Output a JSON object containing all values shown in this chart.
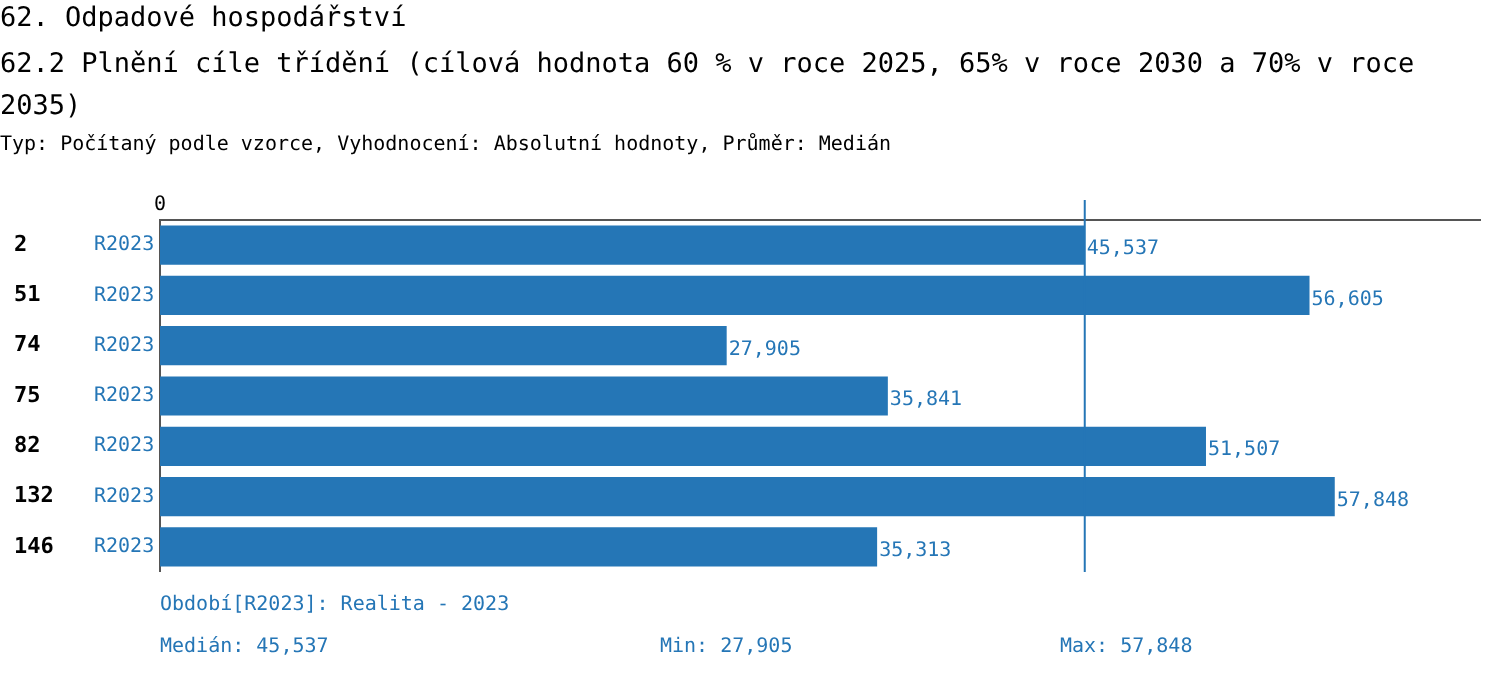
{
  "chart_data": {
    "type": "bar",
    "orientation": "horizontal",
    "title": "62. Odpadové hospodářství",
    "subtitle": "62.2 Plnění cíle třídění (cílová hodnota 60 % v roce 2025, 65% v roce 2030 a 70% v roce 2035)",
    "categories": [
      "2",
      "51",
      "74",
      "75",
      "82",
      "132",
      "146"
    ],
    "series": [
      {
        "name": "R2023",
        "color": "#2576b6",
        "values": [
          45537,
          56605,
          27905,
          35841,
          51507,
          57848,
          35313
        ],
        "value_labels": [
          "45,537",
          "56,605",
          "27,905",
          "35,841",
          "51,507",
          "57,848",
          "35,313"
        ]
      }
    ],
    "xlim": [
      0,
      65000
    ],
    "ref_lines": [
      {
        "axis": "x",
        "value": 45537,
        "color": "#2576b6"
      }
    ],
    "legend": false,
    "annotations": [
      "Typ: Počítaný podle vzorce, Vyhodnocení: Absolutní hodnoty, Průměr: Medián",
      "Období[R2023]: Realita - 2023",
      "Medián: 45,537",
      "Min: 27,905",
      "Max: 57,848",
      "0"
    ]
  }
}
